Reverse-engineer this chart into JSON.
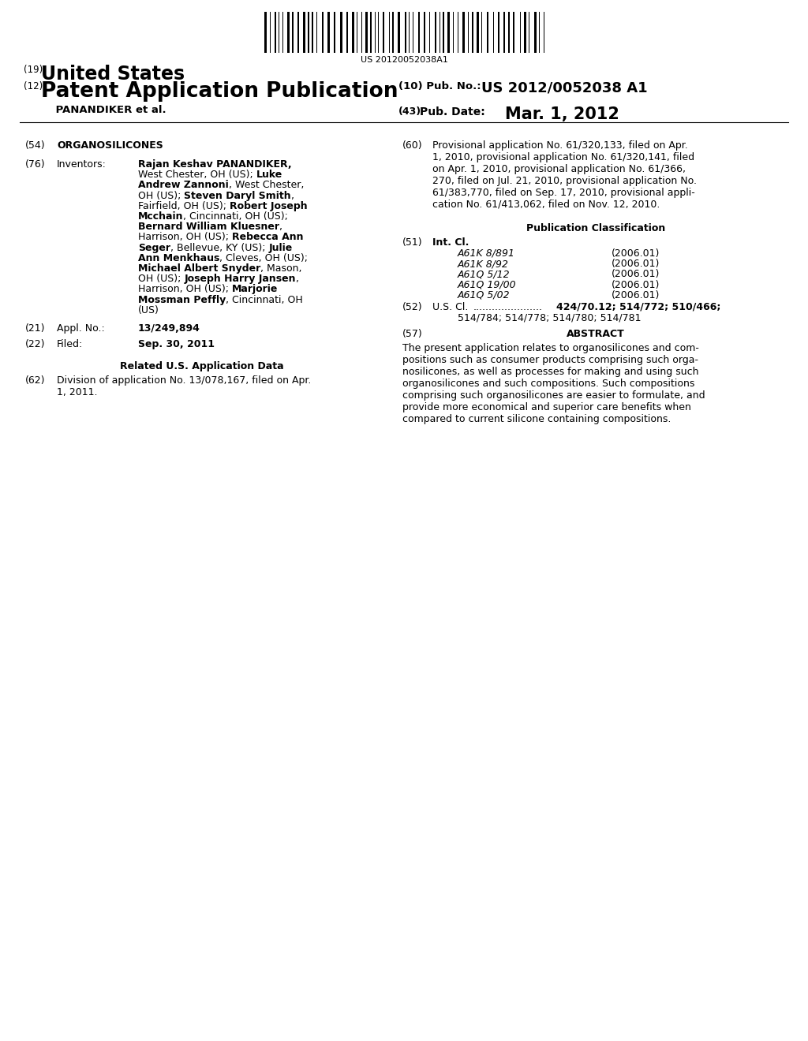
{
  "background_color": "#ffffff",
  "barcode_text": "US 20120052038A1",
  "title_19_num": "(19)",
  "title_19_text": "United States",
  "title_12_num": "(12)",
  "title_12_text": "Patent Application Publication",
  "title_panandiker": "    PANANDIKER et al.",
  "pub_no_label": "(10) Pub. No.:",
  "pub_no_value": "US 2012/0052038 A1",
  "pub_date_num": "(43)",
  "pub_date_label": "Pub. Date:",
  "pub_date_value": "Mar. 1, 2012",
  "sec54_label": "(54)",
  "sec54_text": "ORGANOSILICONES",
  "sec76_label": "(76)",
  "sec76_title": "Inventors:",
  "inv_lines": [
    [
      [
        "Rajan Keshav PANANDIKER,",
        true
      ]
    ],
    [
      [
        "West Chester, OH (US); ",
        false
      ],
      [
        "Luke",
        true
      ]
    ],
    [
      [
        "Andrew Zannoni",
        true
      ],
      [
        ", West Chester,",
        false
      ]
    ],
    [
      [
        "OH (US); ",
        false
      ],
      [
        "Steven Daryl Smith",
        true
      ],
      [
        ",",
        false
      ]
    ],
    [
      [
        "Fairfield, OH (US); ",
        false
      ],
      [
        "Robert Joseph",
        true
      ]
    ],
    [
      [
        "Mcchain",
        true
      ],
      [
        ", Cincinnati, OH (US);",
        false
      ]
    ],
    [
      [
        "Bernard William Kluesner",
        true
      ],
      [
        ",",
        false
      ]
    ],
    [
      [
        "Harrison, OH (US); ",
        false
      ],
      [
        "Rebecca Ann",
        true
      ]
    ],
    [
      [
        "Seger",
        true
      ],
      [
        ", Bellevue, KY (US); ",
        false
      ],
      [
        "Julie",
        true
      ]
    ],
    [
      [
        "Ann Menkhaus",
        true
      ],
      [
        ", Cleves, OH (US);",
        false
      ]
    ],
    [
      [
        "Michael Albert Snyder",
        true
      ],
      [
        ", Mason,",
        false
      ]
    ],
    [
      [
        "OH (US); ",
        false
      ],
      [
        "Joseph Harry Jansen",
        true
      ],
      [
        ",",
        false
      ]
    ],
    [
      [
        "Harrison, OH (US); ",
        false
      ],
      [
        "Marjorie",
        true
      ]
    ],
    [
      [
        "Mossman Peffly",
        true
      ],
      [
        ", Cincinnati, OH",
        false
      ]
    ],
    [
      [
        "(US)",
        false
      ]
    ]
  ],
  "sec21_label": "(21)",
  "sec21_title": "Appl. No.:",
  "sec21_value": "13/249,894",
  "sec22_label": "(22)",
  "sec22_title": "Filed:",
  "sec22_value": "Sep. 30, 2011",
  "related_title": "Related U.S. Application Data",
  "sec62_label": "(62)",
  "sec62_text": "Division of application No. 13/078,167, filed on Apr.\n1, 2011.",
  "sec60_label": "(60)",
  "sec60_text": "Provisional application No. 61/320,133, filed on Apr.\n1, 2010, provisional application No. 61/320,141, filed\non Apr. 1, 2010, provisional application No. 61/366,\n270, filed on Jul. 21, 2010, provisional application No.\n61/383,770, filed on Sep. 17, 2010, provisional appli-\ncation No. 61/413,062, filed on Nov. 12, 2010.",
  "pub_class_title": "Publication Classification",
  "sec51_label": "(51)",
  "sec51_title": "Int. Cl.",
  "int_cl": [
    [
      "A61K 8/891",
      "(2006.01)"
    ],
    [
      "A61K 8/92",
      "(2006.01)"
    ],
    [
      "A61Q 5/12",
      "(2006.01)"
    ],
    [
      "A61Q 19/00",
      "(2006.01)"
    ],
    [
      "A61Q 5/02",
      "(2006.01)"
    ]
  ],
  "sec52_label": "(52)",
  "sec52_title": "U.S. Cl.",
  "sec52_dots": "......................",
  "sec52_val1": "424/70.12; 514/772; 510/466;",
  "sec52_val2": "514/784; 514/778; 514/780; 514/781",
  "sec57_label": "(57)",
  "sec57_title": "ABSTRACT",
  "abstract": "The present application relates to organosilicones and com-\npositions such as consumer products comprising such orga-\nnosilicones, as well as processes for making and using such\norganosilicones and such compositions. Such compositions\ncomprising such organosilicones are easier to formulate, and\nprovide more economical and superior care benefits when\ncompared to current silicone containing compositions."
}
